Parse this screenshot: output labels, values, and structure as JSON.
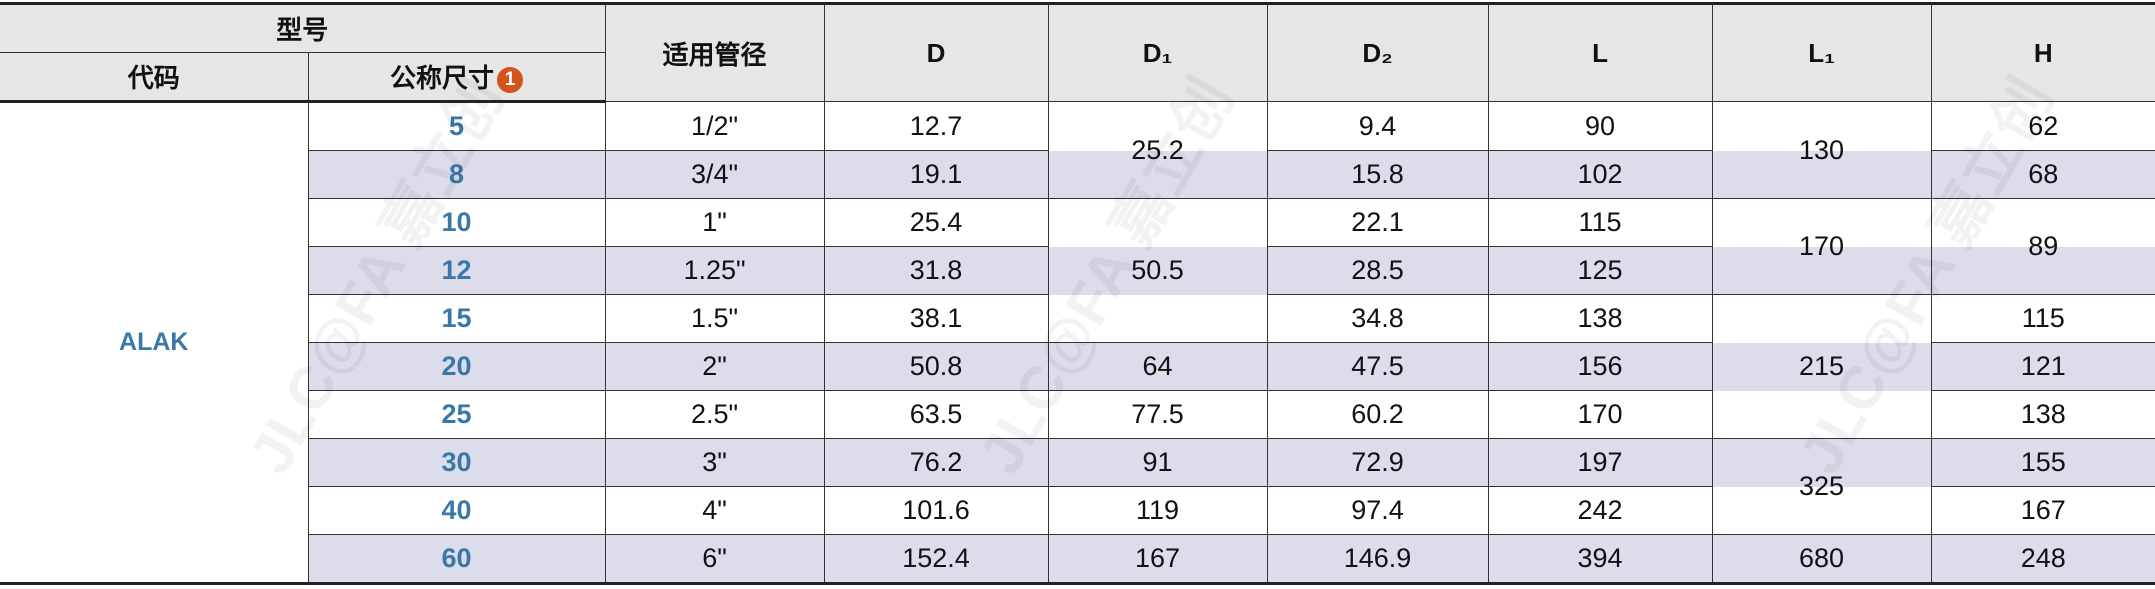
{
  "header": {
    "model": "型号",
    "code": "代码",
    "nominal_size": "公称尺寸",
    "note_badge": "1",
    "pipe": "适用管径",
    "D": "D",
    "D1": "D₁",
    "D2": "D₂",
    "L": "L",
    "L1": "L₁",
    "H": "H"
  },
  "code": "ALAK",
  "sizes": [
    "5",
    "8",
    "10",
    "12",
    "15",
    "20",
    "25",
    "30",
    "40",
    "60"
  ],
  "pipe": [
    "1/2\"",
    "3/4\"",
    "1\"",
    "1.25\"",
    "1.5\"",
    "2\"",
    "2.5\"",
    "3\"",
    "4\"",
    "6\""
  ],
  "D": [
    "12.7",
    "19.1",
    "25.4",
    "31.8",
    "38.1",
    "50.8",
    "63.5",
    "76.2",
    "101.6",
    "152.4"
  ],
  "D1": [
    {
      "value": "25.2",
      "rows": 2
    },
    {
      "value": "50.5",
      "rows": 3
    },
    {
      "value": "64",
      "rows": 1
    },
    {
      "value": "77.5",
      "rows": 1
    },
    {
      "value": "91",
      "rows": 1
    },
    {
      "value": "119",
      "rows": 1
    },
    {
      "value": "167",
      "rows": 1
    }
  ],
  "D2": [
    "9.4",
    "15.8",
    "22.1",
    "28.5",
    "34.8",
    "47.5",
    "60.2",
    "72.9",
    "97.4",
    "146.9"
  ],
  "L": [
    "90",
    "102",
    "115",
    "125",
    "138",
    "156",
    "170",
    "197",
    "242",
    "394"
  ],
  "L1": [
    {
      "value": "130",
      "rows": 2
    },
    {
      "value": "170",
      "rows": 2
    },
    {
      "value": "215",
      "rows": 3
    },
    {
      "value": "325",
      "rows": 2
    },
    {
      "value": "680",
      "rows": 1
    }
  ],
  "H": [
    {
      "value": "62",
      "rows": 1
    },
    {
      "value": "68",
      "rows": 1
    },
    {
      "value": "89",
      "rows": 2
    },
    {
      "value": "115",
      "rows": 1
    },
    {
      "value": "121",
      "rows": 1
    },
    {
      "value": "138",
      "rows": 1
    },
    {
      "value": "155",
      "rows": 1
    },
    {
      "value": "167",
      "rows": 1
    },
    {
      "value": "248",
      "rows": 1
    }
  ],
  "colors": {
    "stripe": "#dcdcea",
    "header_bg": "#e6e6e6",
    "code_text": "#3a78a8",
    "badge": "#d4541c"
  }
}
